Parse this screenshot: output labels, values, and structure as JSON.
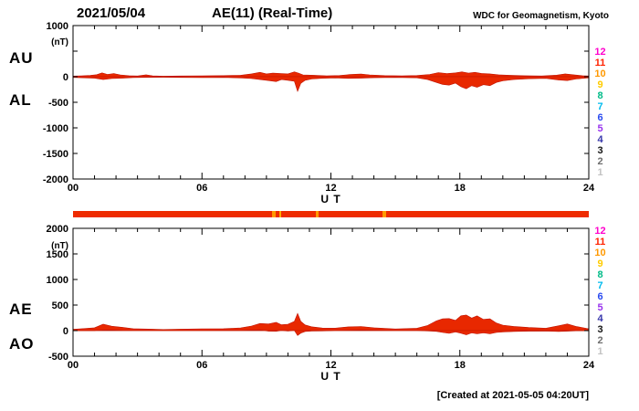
{
  "header": {
    "date": "2021/05/04",
    "title": "AE(11) (Real-Time)",
    "source": "WDC for Geomagnetism, Kyoto"
  },
  "labels": {
    "au": "AU",
    "al": "AL",
    "ae": "AE",
    "ao": "AO"
  },
  "footer": {
    "created": "[Created at 2021-05-05 04:20UT]"
  },
  "colors": {
    "trace": "#e82800",
    "trace_edge": "#c01400",
    "frame": "#000000"
  },
  "availability_strip": {
    "base_color": "#ee2b00",
    "segments": [
      {
        "start": 9.25,
        "end": 9.45,
        "color": "#ff9900"
      },
      {
        "start": 9.6,
        "end": 9.7,
        "color": "#ffaa00"
      },
      {
        "start": 11.3,
        "end": 11.42,
        "color": "#ff9900"
      },
      {
        "start": 14.4,
        "end": 14.55,
        "color": "#ff9900"
      }
    ]
  },
  "station_scale": {
    "values": [
      {
        "n": "12",
        "color": "#ff00cc"
      },
      {
        "n": "11",
        "color": "#ff2200"
      },
      {
        "n": "10",
        "color": "#ff9900"
      },
      {
        "n": "9",
        "color": "#ffcc00"
      },
      {
        "n": "8",
        "color": "#00bb88"
      },
      {
        "n": "7",
        "color": "#00bbee"
      },
      {
        "n": "6",
        "color": "#2849f0"
      },
      {
        "n": "5",
        "color": "#9933ee"
      },
      {
        "n": "4",
        "color": "#3434aa"
      },
      {
        "n": "3",
        "color": "#141414"
      },
      {
        "n": "2",
        "color": "#6e6e6e"
      },
      {
        "n": "1",
        "color": "#c2c2c2"
      }
    ]
  },
  "chart_data": [
    {
      "type": "area",
      "name": "AU / AL panel",
      "ylim": [
        -2000,
        1000
      ],
      "ytick_step": 500,
      "ytick_skip_labels": [
        500
      ],
      "unit": "(nT)",
      "unit_y": 700,
      "xlim": [
        0,
        24
      ],
      "xticks": [
        0,
        6,
        12,
        18,
        24
      ],
      "xtick_labels": [
        "00",
        "06",
        "12",
        "18",
        "24"
      ],
      "xlabel": "U T",
      "series": [
        {
          "name": "AU",
          "points": [
            [
              0,
              12
            ],
            [
              0.4,
              18
            ],
            [
              0.8,
              25
            ],
            [
              1.1,
              40
            ],
            [
              1.35,
              75
            ],
            [
              1.6,
              45
            ],
            [
              1.9,
              60
            ],
            [
              2.2,
              35
            ],
            [
              2.6,
              20
            ],
            [
              3,
              14
            ],
            [
              3.4,
              38
            ],
            [
              3.7,
              18
            ],
            [
              4.2,
              10
            ],
            [
              5,
              14
            ],
            [
              6,
              18
            ],
            [
              7,
              22
            ],
            [
              7.8,
              28
            ],
            [
              8.3,
              55
            ],
            [
              8.7,
              85
            ],
            [
              9,
              55
            ],
            [
              9.3,
              70
            ],
            [
              9.7,
              60
            ],
            [
              10,
              55
            ],
            [
              10.3,
              95
            ],
            [
              10.5,
              70
            ],
            [
              10.7,
              35
            ],
            [
              11.2,
              28
            ],
            [
              11.8,
              18
            ],
            [
              12.4,
              24
            ],
            [
              12.9,
              42
            ],
            [
              13.4,
              52
            ],
            [
              13.8,
              35
            ],
            [
              14.5,
              22
            ],
            [
              15.3,
              18
            ],
            [
              16,
              24
            ],
            [
              16.6,
              45
            ],
            [
              17,
              80
            ],
            [
              17.4,
              60
            ],
            [
              17.8,
              75
            ],
            [
              18.1,
              95
            ],
            [
              18.4,
              70
            ],
            [
              18.7,
              85
            ],
            [
              19,
              65
            ],
            [
              19.4,
              55
            ],
            [
              19.8,
              38
            ],
            [
              20.3,
              28
            ],
            [
              21,
              20
            ],
            [
              21.8,
              15
            ],
            [
              22.5,
              30
            ],
            [
              22.9,
              55
            ],
            [
              23.3,
              38
            ],
            [
              23.7,
              20
            ],
            [
              24,
              14
            ]
          ]
        },
        {
          "name": "AL",
          "points": [
            [
              0,
              -14
            ],
            [
              0.5,
              -22
            ],
            [
              1,
              -28
            ],
            [
              1.4,
              -55
            ],
            [
              1.8,
              -35
            ],
            [
              2.3,
              -28
            ],
            [
              2.8,
              -16
            ],
            [
              3.5,
              -12
            ],
            [
              4.2,
              -10
            ],
            [
              5,
              -14
            ],
            [
              6,
              -18
            ],
            [
              7,
              -14
            ],
            [
              7.8,
              -24
            ],
            [
              8.3,
              -35
            ],
            [
              8.7,
              -55
            ],
            [
              9.1,
              -75
            ],
            [
              9.45,
              -95
            ],
            [
              9.7,
              -55
            ],
            [
              10,
              -70
            ],
            [
              10.3,
              -90
            ],
            [
              10.45,
              -285
            ],
            [
              10.6,
              -130
            ],
            [
              10.8,
              -70
            ],
            [
              11.1,
              -45
            ],
            [
              11.6,
              -30
            ],
            [
              12.2,
              -24
            ],
            [
              12.8,
              -32
            ],
            [
              13.4,
              -28
            ],
            [
              14,
              -20
            ],
            [
              15,
              -15
            ],
            [
              16,
              -22
            ],
            [
              16.5,
              -55
            ],
            [
              16.9,
              -110
            ],
            [
              17.2,
              -150
            ],
            [
              17.5,
              -165
            ],
            [
              17.8,
              -125
            ],
            [
              18.05,
              -195
            ],
            [
              18.3,
              -235
            ],
            [
              18.55,
              -175
            ],
            [
              18.8,
              -205
            ],
            [
              19.1,
              -155
            ],
            [
              19.4,
              -175
            ],
            [
              19.7,
              -110
            ],
            [
              20,
              -80
            ],
            [
              20.5,
              -55
            ],
            [
              21.2,
              -40
            ],
            [
              22,
              -32
            ],
            [
              22.6,
              -65
            ],
            [
              23,
              -75
            ],
            [
              23.4,
              -45
            ],
            [
              24,
              -22
            ]
          ]
        }
      ]
    },
    {
      "type": "area",
      "name": "AE / AO panel",
      "ylim": [
        -500,
        2000
      ],
      "ytick_step": 500,
      "ytick_skip_labels": [],
      "unit": "(nT)",
      "unit_y": 1680,
      "xlim": [
        0,
        24
      ],
      "xticks": [
        0,
        6,
        12,
        18,
        24
      ],
      "xtick_labels": [
        "00",
        "06",
        "12",
        "18",
        "24"
      ],
      "xlabel": "U T",
      "series": [
        {
          "name": "AE",
          "points": [
            [
              0,
              26
            ],
            [
              0.5,
              40
            ],
            [
              1,
              55
            ],
            [
              1.4,
              125
            ],
            [
              1.8,
              85
            ],
            [
              2.3,
              65
            ],
            [
              2.8,
              38
            ],
            [
              3.5,
              30
            ],
            [
              4.2,
              22
            ],
            [
              5,
              28
            ],
            [
              6,
              36
            ],
            [
              7,
              38
            ],
            [
              7.8,
              52
            ],
            [
              8.3,
              90
            ],
            [
              8.7,
              140
            ],
            [
              9.1,
              130
            ],
            [
              9.45,
              160
            ],
            [
              9.7,
              115
            ],
            [
              10,
              125
            ],
            [
              10.3,
              180
            ],
            [
              10.45,
              335
            ],
            [
              10.6,
              180
            ],
            [
              10.8,
              110
            ],
            [
              11.1,
              75
            ],
            [
              11.6,
              50
            ],
            [
              12.2,
              48
            ],
            [
              12.8,
              74
            ],
            [
              13.4,
              80
            ],
            [
              14,
              55
            ],
            [
              15,
              33
            ],
            [
              16,
              46
            ],
            [
              16.5,
              100
            ],
            [
              16.9,
              190
            ],
            [
              17.2,
              230
            ],
            [
              17.5,
              235
            ],
            [
              17.8,
              200
            ],
            [
              18.05,
              290
            ],
            [
              18.3,
              305
            ],
            [
              18.55,
              245
            ],
            [
              18.8,
              290
            ],
            [
              19.1,
              220
            ],
            [
              19.4,
              230
            ],
            [
              19.7,
              148
            ],
            [
              20,
              108
            ],
            [
              20.5,
              83
            ],
            [
              21.2,
              60
            ],
            [
              22,
              47
            ],
            [
              22.6,
              95
            ],
            [
              23,
              130
            ],
            [
              23.4,
              83
            ],
            [
              24,
              36
            ]
          ]
        },
        {
          "name": "AO",
          "points": [
            [
              0,
              -1
            ],
            [
              0.5,
              -2
            ],
            [
              1,
              -2
            ],
            [
              1.4,
              10
            ],
            [
              1.8,
              13
            ],
            [
              2.3,
              4
            ],
            [
              2.8,
              2
            ],
            [
              3.5,
              1
            ],
            [
              4.2,
              0
            ],
            [
              5,
              0
            ],
            [
              6,
              0
            ],
            [
              7,
              4
            ],
            [
              7.8,
              2
            ],
            [
              8.3,
              10
            ],
            [
              8.7,
              15
            ],
            [
              9.1,
              -10
            ],
            [
              9.45,
              -13
            ],
            [
              9.7,
              3
            ],
            [
              10,
              -8
            ],
            [
              10.3,
              3
            ],
            [
              10.45,
              -95
            ],
            [
              10.6,
              -48
            ],
            [
              10.8,
              -18
            ],
            [
              11.1,
              -9
            ],
            [
              11.6,
              -6
            ],
            [
              12.2,
              0
            ],
            [
              12.8,
              5
            ],
            [
              13.4,
              12
            ],
            [
              14,
              8
            ],
            [
              15,
              2
            ],
            [
              16,
              1
            ],
            [
              16.5,
              -5
            ],
            [
              16.9,
              -15
            ],
            [
              17.2,
              -35
            ],
            [
              17.5,
              -53
            ],
            [
              17.8,
              -25
            ],
            [
              18.05,
              -50
            ],
            [
              18.3,
              -83
            ],
            [
              18.55,
              -45
            ],
            [
              18.8,
              -60
            ],
            [
              19.1,
              -45
            ],
            [
              19.4,
              -60
            ],
            [
              19.7,
              -36
            ],
            [
              20,
              -26
            ],
            [
              20.5,
              -18
            ],
            [
              21.2,
              -10
            ],
            [
              22,
              -9
            ],
            [
              22.6,
              -18
            ],
            [
              23,
              -10
            ],
            [
              23.4,
              -4
            ],
            [
              24,
              -4
            ]
          ]
        }
      ]
    }
  ]
}
